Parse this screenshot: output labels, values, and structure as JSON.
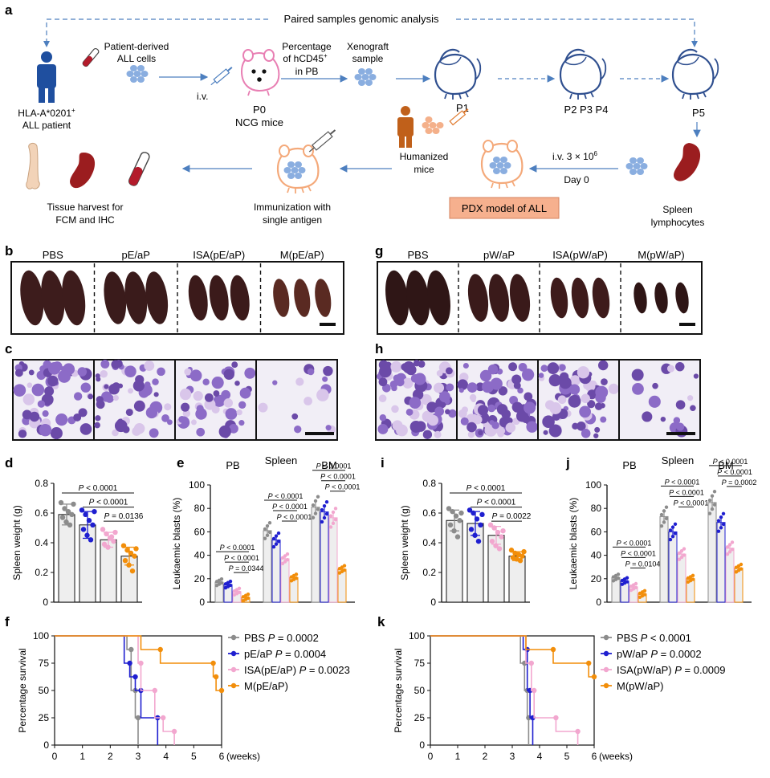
{
  "panel_letters": {
    "a": "a",
    "b": "b",
    "c": "c",
    "d": "d",
    "e": "e",
    "f": "f",
    "g": "g",
    "h": "h",
    "i": "i",
    "j": "j",
    "k": "k"
  },
  "schematic": {
    "top_label": "Paired samples genomic analysis",
    "patient_label_1": "HLA-A*0201",
    "patient_label_sup": "+",
    "patient_label_2": "ALL patient",
    "cells_label_1": "Patient-derived",
    "cells_label_2": "ALL cells",
    "iv_label": "i.v.",
    "p0_label": "P0",
    "ncg_label": "NCG mice",
    "pct_label_1": "Percentage",
    "pct_label_2": "of hCD45",
    "pct_label_sup": "+",
    "pct_label_3": "in PB",
    "xeno_label_1": "Xenograft",
    "xeno_label_2": "sample",
    "p1_label": "P1",
    "p234_label": "P2  P3  P4",
    "p5_label": "P5",
    "humanized_1": "Humanized",
    "humanized_2": "mice",
    "iv_dose": "i.v. 3 × 10",
    "iv_dose_sup": "6",
    "day0": "Day 0",
    "spleen_1": "Spleen",
    "spleen_2": "lymphocytes",
    "pdx_box": "PDX model of ALL",
    "immun_1": "Immunization with",
    "immun_2": "single antigen",
    "harvest_1": "Tissue harvest for",
    "harvest_2": "FCM and IHC"
  },
  "photo_panels": {
    "b_labels": [
      "PBS",
      "pE/aP",
      "ISA(pE/aP)",
      "M(pE/aP)"
    ],
    "g_labels": [
      "PBS",
      "pW/aP",
      "ISA(pW/aP)",
      "M(pW/aP)"
    ]
  },
  "colors": {
    "grey": "#8c8c8c",
    "blue": "#1f1fd0",
    "pink": "#f2a7cf",
    "orange": "#f28e0a",
    "arrow": "#4d7fbf",
    "pdx_box": "#f6b08e"
  },
  "chart_data": [
    {
      "id": "d",
      "type": "bar",
      "ylabel": "Spleen weight (g)",
      "ylim": [
        0,
        0.8
      ],
      "yticks": [
        "0",
        "0.2",
        "0.4",
        "0.6",
        "0.8"
      ],
      "series": [
        {
          "name": "PBS",
          "value": 0.59,
          "err": 0.07,
          "points": [
            0.67,
            0.63,
            0.61,
            0.59,
            0.57,
            0.54,
            0.52,
            0.66
          ]
        },
        {
          "name": "pE/aP",
          "value": 0.52,
          "err": 0.09,
          "points": [
            0.62,
            0.59,
            0.55,
            0.52,
            0.49,
            0.45,
            0.42,
            0.61
          ]
        },
        {
          "name": "ISA(pE/aP)",
          "value": 0.42,
          "err": 0.05,
          "points": [
            0.49,
            0.46,
            0.43,
            0.41,
            0.39,
            0.37,
            0.44,
            0.47
          ]
        },
        {
          "name": "M(pE/aP)",
          "value": 0.31,
          "err": 0.06,
          "points": [
            0.38,
            0.35,
            0.33,
            0.31,
            0.28,
            0.25,
            0.21,
            0.36
          ]
        }
      ],
      "comparisons": [
        "P < 0.0001",
        "P < 0.0001",
        "P = 0.0136"
      ]
    },
    {
      "id": "e",
      "type": "bar",
      "ylabel": "Leukaemic blasts (%)",
      "ylim": [
        0,
        100
      ],
      "yticks": [
        "0",
        "20",
        "40",
        "60",
        "80",
        "100"
      ],
      "groups": [
        "PB",
        "Spleen",
        "BM"
      ],
      "series": [
        {
          "name": "PBS",
          "values": [
            17,
            61,
            81
          ]
        },
        {
          "name": "pE/aP",
          "values": [
            15,
            53,
            77
          ]
        },
        {
          "name": "ISA(pE/aP)",
          "values": [
            9,
            37,
            72
          ]
        },
        {
          "name": "M(pE/aP)",
          "values": [
            4,
            21,
            28
          ]
        }
      ],
      "comparisons": {
        "PB": [
          "P < 0.0001",
          "P < 0.0001",
          "P = 0.0344"
        ],
        "Spleen": [
          "P < 0.0001",
          "P < 0.0001",
          "P < 0.0001"
        ],
        "BM": [
          "P < 0.0001",
          "P < 0.0001",
          "P < 0.0001"
        ]
      }
    },
    {
      "id": "i",
      "type": "bar",
      "ylabel": "Spleen weight (g)",
      "ylim": [
        0,
        0.8
      ],
      "yticks": [
        "0",
        "0.2",
        "0.4",
        "0.6",
        "0.8"
      ],
      "series": [
        {
          "name": "PBS",
          "value": 0.55,
          "err": 0.07,
          "points": [
            0.63,
            0.61,
            0.58,
            0.55,
            0.52,
            0.48,
            0.44,
            0.6
          ]
        },
        {
          "name": "pW/aP",
          "value": 0.53,
          "err": 0.08,
          "points": [
            0.62,
            0.6,
            0.56,
            0.52,
            0.49,
            0.45,
            0.41,
            0.59
          ]
        },
        {
          "name": "ISA(pW/aP)",
          "value": 0.45,
          "err": 0.06,
          "points": [
            0.52,
            0.5,
            0.47,
            0.44,
            0.41,
            0.38,
            0.36,
            0.48
          ]
        },
        {
          "name": "M(pW/aP)",
          "value": 0.31,
          "err": 0.03,
          "points": [
            0.35,
            0.33,
            0.32,
            0.31,
            0.3,
            0.29,
            0.28,
            0.34
          ]
        }
      ],
      "comparisons": [
        "P < 0.0001",
        "P < 0.0001",
        "P = 0.0022"
      ]
    },
    {
      "id": "j",
      "type": "bar",
      "ylabel": "Leukaemic blasts (%)",
      "ylim": [
        0,
        100
      ],
      "yticks": [
        "0",
        "20",
        "40",
        "60",
        "80",
        "100"
      ],
      "groups": [
        "PB",
        "Spleen",
        "BM"
      ],
      "series": [
        {
          "name": "PBS",
          "values": [
            21,
            73,
            85
          ]
        },
        {
          "name": "pW/aP",
          "values": [
            18,
            60,
            68
          ]
        },
        {
          "name": "ISA(pW/aP)",
          "values": [
            13,
            41,
            46
          ]
        },
        {
          "name": "M(pW/aP)",
          "values": [
            7,
            20,
            29
          ]
        }
      ],
      "comparisons": {
        "PB": [
          "P < 0.0001",
          "P < 0.0001",
          "P = 0.0104"
        ],
        "Spleen": [
          "P < 0.0001",
          "P < 0.0001",
          "P < 0.0001"
        ],
        "BM": [
          "P < 0.0001",
          "P < 0.0001",
          "P = 0.0002"
        ]
      }
    },
    {
      "id": "f",
      "type": "line",
      "ylabel": "Percentage survival",
      "xlabel": "(weeks)",
      "xlim": [
        0,
        6
      ],
      "ylim": [
        0,
        100
      ],
      "xticks": [
        "0",
        "1",
        "2",
        "3",
        "4",
        "5",
        "6"
      ],
      "yticks": [
        "0",
        "25",
        "50",
        "75",
        "100"
      ],
      "series": [
        {
          "name": "PBS",
          "stat": "P = 0.0002",
          "steps": [
            [
              0,
              100
            ],
            [
              2.6,
              100
            ],
            [
              2.6,
              87.5
            ],
            [
              2.75,
              87.5
            ],
            [
              2.75,
              50
            ],
            [
              2.9,
              50
            ],
            [
              2.9,
              25
            ],
            [
              3.0,
              25
            ],
            [
              3.0,
              0
            ]
          ]
        },
        {
          "name": "pE/aP",
          "stat": "P = 0.0004",
          "steps": [
            [
              0,
              100
            ],
            [
              2.5,
              100
            ],
            [
              2.5,
              75
            ],
            [
              2.7,
              75
            ],
            [
              2.7,
              62.5
            ],
            [
              2.9,
              62.5
            ],
            [
              2.9,
              50
            ],
            [
              3.1,
              50
            ],
            [
              3.1,
              25
            ],
            [
              3.7,
              25
            ],
            [
              3.7,
              0
            ]
          ]
        },
        {
          "name": "ISA(pE/aP)",
          "stat": "P = 0.0023",
          "steps": [
            [
              0,
              100
            ],
            [
              3.0,
              100
            ],
            [
              3.0,
              75
            ],
            [
              3.1,
              75
            ],
            [
              3.1,
              50
            ],
            [
              3.6,
              50
            ],
            [
              3.6,
              25
            ],
            [
              3.9,
              25
            ],
            [
              3.9,
              12.5
            ],
            [
              4.3,
              12.5
            ],
            [
              4.3,
              0
            ]
          ]
        },
        {
          "name": "M(pE/aP)",
          "stat": "",
          "steps": [
            [
              0,
              100
            ],
            [
              3.1,
              100
            ],
            [
              3.1,
              87.5
            ],
            [
              3.8,
              87.5
            ],
            [
              3.8,
              75
            ],
            [
              5.7,
              75
            ],
            [
              5.7,
              62.5
            ],
            [
              5.8,
              62.5
            ],
            [
              5.8,
              50
            ],
            [
              6,
              50
            ]
          ]
        }
      ]
    },
    {
      "id": "k",
      "type": "line",
      "ylabel": "Percentage survival",
      "xlabel": "(weeks)",
      "xlim": [
        0,
        6
      ],
      "ylim": [
        0,
        100
      ],
      "xticks": [
        "0",
        "1",
        "2",
        "3",
        "4",
        "5",
        "6"
      ],
      "yticks": [
        "0",
        "25",
        "50",
        "75",
        "100"
      ],
      "series": [
        {
          "name": "PBS",
          "stat": "P < 0.0001",
          "steps": [
            [
              0,
              100
            ],
            [
              3.3,
              100
            ],
            [
              3.3,
              75
            ],
            [
              3.45,
              75
            ],
            [
              3.45,
              50
            ],
            [
              3.55,
              50
            ],
            [
              3.55,
              25
            ],
            [
              3.6,
              25
            ],
            [
              3.6,
              0
            ]
          ]
        },
        {
          "name": "pW/aP",
          "stat": "P = 0.0002",
          "steps": [
            [
              0,
              100
            ],
            [
              3.4,
              100
            ],
            [
              3.4,
              87.5
            ],
            [
              3.55,
              87.5
            ],
            [
              3.55,
              50
            ],
            [
              3.65,
              50
            ],
            [
              3.65,
              25
            ],
            [
              3.75,
              25
            ],
            [
              3.75,
              0
            ]
          ]
        },
        {
          "name": "ISA(pW/aP)",
          "stat": "P = 0.0009",
          "steps": [
            [
              0,
              100
            ],
            [
              3.5,
              100
            ],
            [
              3.5,
              75
            ],
            [
              3.7,
              75
            ],
            [
              3.7,
              50
            ],
            [
              3.8,
              50
            ],
            [
              3.8,
              25
            ],
            [
              4.6,
              25
            ],
            [
              4.6,
              12.5
            ],
            [
              5.4,
              12.5
            ],
            [
              5.4,
              0
            ]
          ]
        },
        {
          "name": "M(pW/aP)",
          "stat": "",
          "steps": [
            [
              0,
              100
            ],
            [
              3.5,
              100
            ],
            [
              3.5,
              87.5
            ],
            [
              4.5,
              87.5
            ],
            [
              4.5,
              75
            ],
            [
              5.8,
              75
            ],
            [
              5.8,
              62.5
            ],
            [
              6,
              62.5
            ]
          ]
        }
      ]
    }
  ]
}
